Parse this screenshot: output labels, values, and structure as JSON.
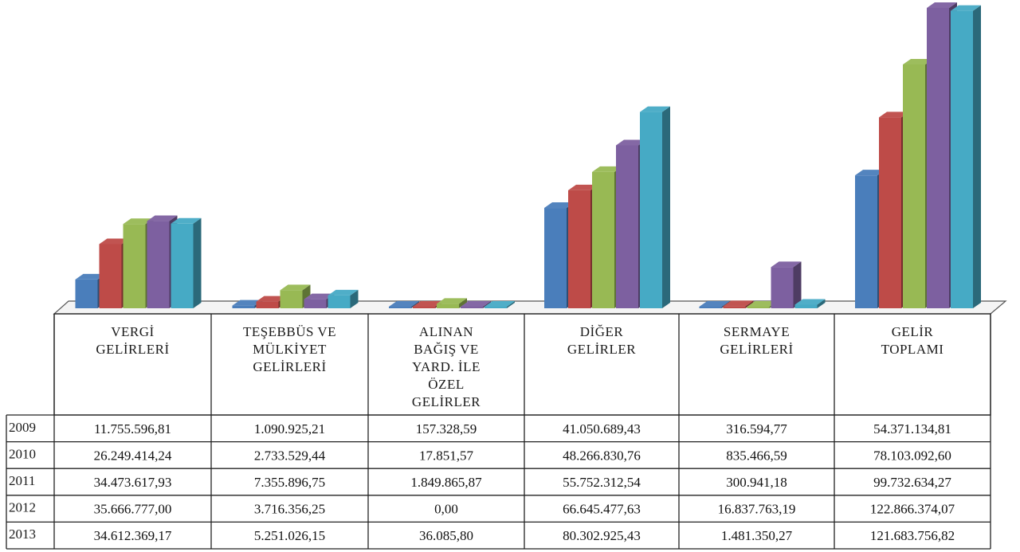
{
  "chart_data": {
    "type": "bar",
    "categories": [
      "VERGİ GELİRLERİ",
      "TEŞEBBÜS VE MÜLKİYET GELİRLERİ",
      "ALINAN BAĞIŞ VE YARD. İLE ÖZEL GELİRLER",
      "DİĞER GELİRLER",
      "SERMAYE GELİRLERİ",
      "GELİR TOPLAMI"
    ],
    "category_lines": [
      [
        "VERGİ",
        "GELİRLERİ"
      ],
      [
        "TEŞEBBÜS VE",
        "MÜLKİYET",
        "GELİRLERİ"
      ],
      [
        "ALINAN",
        "BAĞIŞ VE",
        "YARD. İLE",
        "ÖZEL",
        "GELİRLER"
      ],
      [
        "DİĞER",
        "GELİRLER"
      ],
      [
        "SERMAYE",
        "GELİRLERİ"
      ],
      [
        "GELİR",
        "TOPLAMI"
      ]
    ],
    "series": [
      {
        "name": "2009",
        "color": "#4a7ebb",
        "values": [
          11755596.81,
          1090925.21,
          157328.59,
          41050689.43,
          316594.77,
          54371134.81
        ],
        "labels": [
          "11.755.596,81",
          "1.090.925,21",
          "157.328,59",
          "41.050.689,43",
          "316.594,77",
          "54.371.134,81"
        ]
      },
      {
        "name": "2010",
        "color": "#be4b48",
        "values": [
          26249414.24,
          2733529.44,
          17851.57,
          48266830.76,
          835466.59,
          78103092.6
        ],
        "labels": [
          "26.249.414,24",
          "2.733.529,44",
          "17.851,57",
          "48.266.830,76",
          "835.466,59",
          "78.103.092,60"
        ]
      },
      {
        "name": "2011",
        "color": "#98b954",
        "values": [
          34473617.93,
          7355896.75,
          1849865.87,
          55752312.54,
          300941.18,
          99732634.27
        ],
        "labels": [
          "34.473.617,93",
          "7.355.896,75",
          "1.849.865,87",
          "55.752.312,54",
          "300.941,18",
          "99.732.634,27"
        ]
      },
      {
        "name": "2012",
        "color": "#7d60a0",
        "values": [
          35666777.0,
          3716356.25,
          0.0,
          66645477.63,
          16837763.19,
          122866374.07
        ],
        "labels": [
          "35.666.777,00",
          "3.716.356,25",
          "0,00",
          "66.645.477,63",
          "16.837.763,19",
          "122.866.374,07"
        ]
      },
      {
        "name": "2013",
        "color": "#46aac5",
        "values": [
          34612369.17,
          5251026.15,
          36085.8,
          80302925.43,
          1481350.27,
          121683756.82
        ],
        "labels": [
          "34.612.369,17",
          "5.251.026,15",
          "36.085,80",
          "80.302.925,43",
          "1.481.350,27",
          "121.683.756,82"
        ]
      }
    ],
    "ylim": [
      0,
      122866374.07
    ],
    "legend": "data-table-below",
    "grid": false
  }
}
